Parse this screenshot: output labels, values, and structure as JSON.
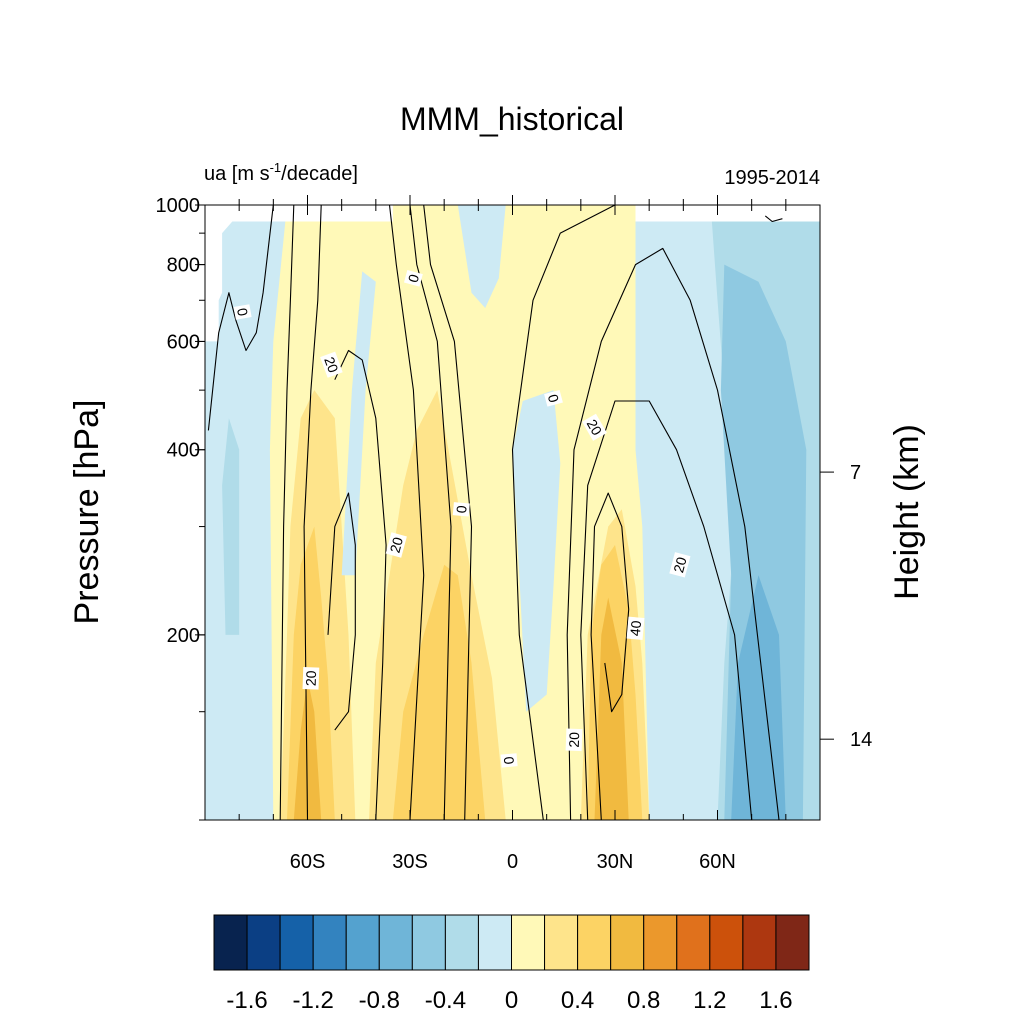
{
  "chart_data": {
    "type": "heatmap",
    "title": "MMM_historical",
    "left_label": "ua [m s",
    "left_label_sup": "-1",
    "left_label_tail": "/decade]",
    "right_label": "1995-2014",
    "ylabel": "Pressure [hPa]",
    "ylabel_right": "Height (km)",
    "y_scale": "log",
    "ylim": [
      1000,
      100
    ],
    "xlim": [
      -90,
      90
    ],
    "x_ticks": [
      {
        "value": -60,
        "label": "60S"
      },
      {
        "value": -30,
        "label": "30S"
      },
      {
        "value": 0,
        "label": "0"
      },
      {
        "value": 30,
        "label": "30N"
      },
      {
        "value": 60,
        "label": "60N"
      }
    ],
    "y_ticks": [
      {
        "value": 1000,
        "label": "1000"
      },
      {
        "value": 800,
        "label": "800"
      },
      {
        "value": 600,
        "label": "600"
      },
      {
        "value": 400,
        "label": "400"
      },
      {
        "value": 200,
        "label": "200"
      }
    ],
    "height_ticks": [
      {
        "value": 14,
        "label": "14"
      },
      {
        "value": 7,
        "label": "7"
      }
    ],
    "colorbar": {
      "colors": [
        "#08234f",
        "#0b3f84",
        "#1561a8",
        "#3383bf",
        "#54a2cf",
        "#6fb5d8",
        "#8fc9e1",
        "#b0dce9",
        "#cdeaf4",
        "#fff9b8",
        "#fee48b",
        "#fcd364",
        "#f1ba40",
        "#eb982c",
        "#e0711c",
        "#cc510b",
        "#ad3710",
        "#7f2717"
      ],
      "ticks": [
        {
          "value": -1.6,
          "label": "-1.6"
        },
        {
          "value": -1.2,
          "label": "-1.2"
        },
        {
          "value": -0.8,
          "label": "-0.8"
        },
        {
          "value": -0.4,
          "label": "-0.4"
        },
        {
          "value": 0,
          "label": "0"
        },
        {
          "value": 0.4,
          "label": "0.4"
        },
        {
          "value": 0.8,
          "label": "0.8"
        },
        {
          "value": 1.2,
          "label": "1.2"
        },
        {
          "value": 1.6,
          "label": "1.6"
        }
      ]
    },
    "fill_regions": [
      {
        "level": 0.1,
        "points": [
          [
            -66,
            100
          ],
          [
            -45,
            100
          ],
          [
            -45,
            200
          ],
          [
            -40,
            300
          ],
          [
            -36,
            500
          ],
          [
            -34,
            1000
          ],
          [
            -68,
            1000
          ],
          [
            -70,
            600
          ],
          [
            -69,
            200
          ]
        ]
      },
      {
        "level": 0.1,
        "points": [
          [
            -40,
            100
          ],
          [
            5,
            100
          ],
          [
            0,
            200
          ],
          [
            -5,
            500
          ],
          [
            -12,
            680
          ],
          [
            -16,
            820
          ],
          [
            -20,
            1000
          ],
          [
            -34,
            1000
          ],
          [
            -36,
            500
          ],
          [
            -40,
            300
          ]
        ]
      },
      {
        "level": 0.1,
        "points": [
          [
            -6,
            680
          ],
          [
            12,
            680
          ],
          [
            20,
            500
          ],
          [
            24,
            650
          ],
          [
            26,
            400
          ],
          [
            20,
            240
          ],
          [
            20,
            100
          ],
          [
            42,
            100
          ],
          [
            40,
            200
          ],
          [
            36,
            400
          ],
          [
            36,
            1000
          ],
          [
            0,
            1000
          ],
          [
            -3,
            800
          ],
          [
            -7,
            680
          ]
        ]
      },
      {
        "level": 0.3,
        "points": [
          [
            -68,
            100
          ],
          [
            -46,
            100
          ],
          [
            -48,
            200
          ],
          [
            -50,
            300
          ],
          [
            -52,
            450
          ],
          [
            -58,
            500
          ],
          [
            -62,
            450
          ],
          [
            -65,
            300
          ],
          [
            -66,
            200
          ]
        ]
      },
      {
        "level": 0.3,
        "points": [
          [
            -42,
            100
          ],
          [
            -2,
            100
          ],
          [
            -6,
            170
          ],
          [
            -12,
            250
          ],
          [
            -18,
            380
          ],
          [
            -22,
            500
          ],
          [
            -28,
            430
          ],
          [
            -32,
            350
          ],
          [
            -36,
            250
          ],
          [
            -40,
            180
          ]
        ]
      },
      {
        "level": 0.3,
        "points": [
          [
            20,
            100
          ],
          [
            40,
            100
          ],
          [
            38,
            180
          ],
          [
            36,
            240
          ],
          [
            32,
            320
          ],
          [
            28,
            300
          ],
          [
            22,
            200
          ]
        ]
      },
      {
        "level": 0.5,
        "points": [
          [
            -66,
            100
          ],
          [
            -52,
            100
          ],
          [
            -54,
            170
          ],
          [
            -56,
            230
          ],
          [
            -58,
            300
          ],
          [
            -62,
            260
          ],
          [
            -64,
            200
          ]
        ]
      },
      {
        "level": 0.5,
        "points": [
          [
            -35,
            100
          ],
          [
            -8,
            100
          ],
          [
            -12,
            180
          ],
          [
            -16,
            250
          ],
          [
            -20,
            260
          ],
          [
            -26,
            200
          ],
          [
            -32,
            150
          ]
        ]
      },
      {
        "level": 0.5,
        "points": [
          [
            22,
            100
          ],
          [
            38,
            100
          ],
          [
            36,
            160
          ],
          [
            34,
            220
          ],
          [
            30,
            280
          ],
          [
            26,
            260
          ],
          [
            23,
            200
          ]
        ]
      },
      {
        "level": 0.7,
        "points": [
          [
            -64,
            100
          ],
          [
            -56,
            100
          ],
          [
            -58,
            150
          ],
          [
            -60,
            170
          ],
          [
            -62,
            140
          ]
        ]
      },
      {
        "level": 0.7,
        "points": [
          [
            24,
            100
          ],
          [
            34,
            100
          ],
          [
            32,
            180
          ],
          [
            28,
            230
          ],
          [
            26,
            200
          ],
          [
            25,
            140
          ]
        ]
      },
      {
        "level": -0.1,
        "points": [
          [
            -90,
            100
          ],
          [
            -70,
            100
          ],
          [
            -71,
            400
          ],
          [
            -70,
            600
          ],
          [
            -66,
            1000
          ],
          [
            -90,
            1000
          ]
        ]
      },
      {
        "level": -0.1,
        "points": [
          [
            4,
            150
          ],
          [
            10,
            160
          ],
          [
            12,
            240
          ],
          [
            14,
            380
          ],
          [
            12,
            500
          ],
          [
            3,
            480
          ],
          [
            0,
            400
          ],
          [
            2,
            250
          ]
        ]
      },
      {
        "level": -0.1,
        "points": [
          [
            40,
            100
          ],
          [
            90,
            100
          ],
          [
            90,
            1000
          ],
          [
            36,
            1000
          ],
          [
            36,
            400
          ],
          [
            38,
            300
          ]
        ]
      },
      {
        "level": -0.1,
        "points": [
          [
            -50,
            250
          ],
          [
            -46,
            250
          ],
          [
            -43,
            500
          ],
          [
            -40,
            750
          ],
          [
            -44,
            780
          ],
          [
            -47,
            500
          ]
        ]
      },
      {
        "level": -0.1,
        "points": [
          [
            -16,
            1000
          ],
          [
            -12,
            720
          ],
          [
            -8,
            680
          ],
          [
            -4,
            760
          ],
          [
            -2,
            1000
          ]
        ]
      },
      {
        "level": -0.3,
        "points": [
          [
            -84,
            200
          ],
          [
            -80,
            200
          ],
          [
            -80,
            400
          ],
          [
            -83,
            450
          ],
          [
            -85,
            350
          ]
        ]
      },
      {
        "level": -0.3,
        "points": [
          [
            60,
            100
          ],
          [
            90,
            100
          ],
          [
            90,
            1000
          ],
          [
            58,
            1000
          ],
          [
            60,
            700
          ],
          [
            65,
            300
          ],
          [
            62,
            180
          ]
        ]
      },
      {
        "level": -0.5,
        "points": [
          [
            62,
            100
          ],
          [
            85,
            100
          ],
          [
            86,
            400
          ],
          [
            80,
            600
          ],
          [
            72,
            750
          ],
          [
            62,
            800
          ],
          [
            61,
            500
          ],
          [
            64,
            250
          ]
        ]
      },
      {
        "level": -0.7,
        "points": [
          [
            64,
            100
          ],
          [
            80,
            100
          ],
          [
            78,
            200
          ],
          [
            72,
            250
          ],
          [
            66,
            180
          ]
        ]
      }
    ],
    "missing_regions": [
      {
        "points": [
          [
            -90,
            600
          ],
          [
            -86,
            600
          ],
          [
            -86,
            700
          ],
          [
            -85,
            720
          ],
          [
            -85,
            900
          ],
          [
            -82,
            940
          ],
          [
            -35,
            940
          ],
          [
            -35,
            1000
          ],
          [
            -90,
            1000
          ]
        ]
      },
      {
        "points": [
          [
            36,
            940
          ],
          [
            90,
            940
          ],
          [
            90,
            1000
          ],
          [
            36,
            1000
          ]
        ]
      }
    ],
    "contours": [
      {
        "points": [
          [
            -68,
            100
          ],
          [
            -67,
            300
          ],
          [
            -66,
            500
          ],
          [
            -65,
            700
          ],
          [
            -64,
            1000
          ]
        ]
      },
      {
        "points": [
          [
            -60,
            100
          ],
          [
            -61,
            300
          ],
          [
            -59,
            500
          ],
          [
            -57,
            700
          ],
          [
            -56,
            1000
          ]
        ]
      },
      {
        "points": [
          [
            -52,
            140
          ],
          [
            -48,
            150
          ],
          [
            -46,
            200
          ],
          [
            -46,
            280
          ],
          [
            -48,
            340
          ],
          [
            -52,
            300
          ],
          [
            -54,
            200
          ]
        ]
      },
      {
        "points": [
          [
            -40,
            100
          ],
          [
            -38,
            180
          ],
          [
            -37,
            280
          ],
          [
            -40,
            450
          ],
          [
            -44,
            560
          ],
          [
            -48,
            580
          ],
          [
            -52,
            520
          ]
        ]
      },
      {
        "points": [
          [
            -30,
            100
          ],
          [
            -26,
            250
          ],
          [
            -29,
            500
          ],
          [
            -34,
            800
          ],
          [
            -36,
            1000
          ]
        ]
      },
      {
        "points": [
          [
            -20,
            100
          ],
          [
            -18,
            300
          ],
          [
            -22,
            600
          ],
          [
            -28,
            800
          ],
          [
            -30,
            1000
          ]
        ]
      },
      {
        "points": [
          [
            -14,
            100
          ],
          [
            -12,
            300
          ],
          [
            -17,
            600
          ],
          [
            -24,
            800
          ],
          [
            -26,
            1000
          ]
        ]
      },
      {
        "points": [
          [
            9,
            100
          ],
          [
            2,
            200
          ],
          [
            0,
            400
          ],
          [
            6,
            700
          ],
          [
            14,
            900
          ],
          [
            30,
            1000
          ]
        ]
      },
      {
        "points": [
          [
            17,
            100
          ],
          [
            16,
            200
          ],
          [
            18,
            400
          ],
          [
            26,
            600
          ],
          [
            36,
            800
          ],
          [
            44,
            850
          ],
          [
            52,
            700
          ],
          [
            60,
            500
          ],
          [
            68,
            300
          ],
          [
            78,
            100
          ]
        ]
      },
      {
        "points": [
          [
            22,
            100
          ],
          [
            20,
            200
          ],
          [
            22,
            350
          ],
          [
            30,
            480
          ],
          [
            40,
            480
          ],
          [
            48,
            400
          ],
          [
            56,
            300
          ],
          [
            65,
            200
          ],
          [
            70,
            100
          ]
        ]
      },
      {
        "points": [
          [
            26,
            100
          ],
          [
            23,
            200
          ],
          [
            24,
            300
          ],
          [
            28,
            340
          ],
          [
            32,
            300
          ],
          [
            34,
            220
          ],
          [
            32,
            160
          ],
          [
            29,
            150
          ],
          [
            27,
            180
          ]
        ]
      },
      {
        "points": [
          [
            -89,
            430
          ],
          [
            -86,
            620
          ],
          [
            -83,
            720
          ],
          [
            -81,
            650
          ],
          [
            -78,
            580
          ],
          [
            -75,
            620
          ],
          [
            -73,
            720
          ],
          [
            -70,
            1000
          ]
        ]
      },
      {
        "points": [
          [
            74,
            960
          ],
          [
            76,
            940
          ],
          [
            79,
            950
          ]
        ]
      }
    ],
    "contour_labels": [
      {
        "text": "20",
        "x": -59,
        "y": 170,
        "rot": -88
      },
      {
        "text": "20",
        "x": -34,
        "y": 280,
        "rot": -75
      },
      {
        "text": "0",
        "x": -15,
        "y": 320,
        "rot": -85
      },
      {
        "text": "0",
        "x": -1,
        "y": 125,
        "rot": 85
      },
      {
        "text": "20",
        "x": 18,
        "y": 135,
        "rot": -88
      },
      {
        "text": "40",
        "x": 36,
        "y": 205,
        "rot": -85
      },
      {
        "text": "20",
        "x": 49,
        "y": 260,
        "rot": -75
      },
      {
        "text": "20",
        "x": -53,
        "y": 550,
        "rot": 70
      },
      {
        "text": "20",
        "x": 24,
        "y": 435,
        "rot": 60
      },
      {
        "text": "0",
        "x": 12,
        "y": 485,
        "rot": 75
      },
      {
        "text": "0",
        "x": -29,
        "y": 760,
        "rot": -75
      },
      {
        "text": "0",
        "x": -79,
        "y": 670,
        "rot": 80
      }
    ]
  }
}
